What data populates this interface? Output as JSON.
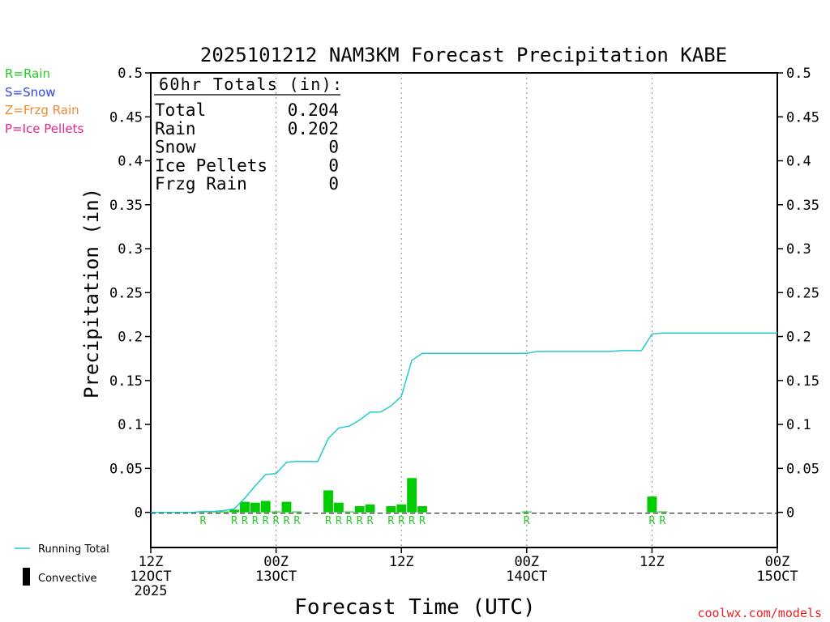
{
  "legend_types": [
    {
      "label": "R=Rain",
      "color": "#22cc22"
    },
    {
      "label": "S=Snow",
      "color": "#3344ee"
    },
    {
      "label": "Z=Frzg Rain",
      "color": "#ee8833"
    },
    {
      "label": "P=Ice Pellets",
      "color": "#ee2288"
    }
  ],
  "footer": {
    "running_total_label": "Running Total",
    "convective_label": "Convective",
    "credit": "coolwx.com/models"
  },
  "totals_box": {
    "heading": "60hr Totals (in):",
    "rows": [
      {
        "label": "Total",
        "value": "0.204"
      },
      {
        "label": "Rain",
        "value": "0.202"
      },
      {
        "label": "Snow",
        "value": "0"
      },
      {
        "label": "Ice Pellets",
        "value": "0"
      },
      {
        "label": "Frzg Rain",
        "value": "0"
      }
    ]
  },
  "colors": {
    "bar": "#00cc00",
    "running_total": "#22cccc",
    "rain_marker": "#22cc22",
    "grid": "#888888",
    "credit": "#ee2222"
  },
  "chart_data": {
    "type": "bar",
    "title": "2025101212 NAM3KM Forecast Precipitation KABE",
    "xlabel": "Forecast Time (UTC)",
    "ylabel": "Precipitation (in)",
    "xlim": [
      0,
      60
    ],
    "ylim": [
      -0.04,
      0.5
    ],
    "yticks": [
      0,
      0.05,
      0.1,
      0.15,
      0.2,
      0.25,
      0.3,
      0.35,
      0.4,
      0.45,
      0.5
    ],
    "ytick_labels": [
      "0",
      "0.05",
      "0.1",
      "0.15",
      "0.2",
      "0.25",
      "0.3",
      "0.35",
      "0.4",
      "0.45",
      "0.5"
    ],
    "xticks": [
      {
        "hour": 0,
        "lines": [
          "12Z",
          "12OCT",
          "2025"
        ]
      },
      {
        "hour": 12,
        "lines": [
          "00Z",
          "13OCT"
        ]
      },
      {
        "hour": 24,
        "lines": [
          "12Z"
        ]
      },
      {
        "hour": 36,
        "lines": [
          "00Z",
          "14OCT"
        ]
      },
      {
        "hour": 48,
        "lines": [
          "12Z"
        ]
      },
      {
        "hour": 60,
        "lines": [
          "00Z",
          "15OCT"
        ]
      }
    ],
    "grid_vertical": true,
    "hourly_precip": [
      {
        "hour": 5,
        "value": 0.001
      },
      {
        "hour": 6,
        "value": 0.001
      },
      {
        "hour": 7,
        "value": 0.001
      },
      {
        "hour": 8,
        "value": 0.003
      },
      {
        "hour": 9,
        "value": 0.012
      },
      {
        "hour": 10,
        "value": 0.011
      },
      {
        "hour": 11,
        "value": 0.013
      },
      {
        "hour": 12,
        "value": 0.001
      },
      {
        "hour": 13,
        "value": 0.012
      },
      {
        "hour": 14,
        "value": 0.001
      },
      {
        "hour": 15,
        "value": 0.0
      },
      {
        "hour": 16,
        "value": 0.0
      },
      {
        "hour": 17,
        "value": 0.025
      },
      {
        "hour": 18,
        "value": 0.011
      },
      {
        "hour": 19,
        "value": 0.001
      },
      {
        "hour": 20,
        "value": 0.007
      },
      {
        "hour": 21,
        "value": 0.009
      },
      {
        "hour": 22,
        "value": 0.0
      },
      {
        "hour": 23,
        "value": 0.007
      },
      {
        "hour": 24,
        "value": 0.009
      },
      {
        "hour": 25,
        "value": 0.039
      },
      {
        "hour": 26,
        "value": 0.007
      },
      {
        "hour": 36,
        "value": 0.001
      },
      {
        "hour": 48,
        "value": 0.018
      },
      {
        "hour": 49,
        "value": 0.001
      }
    ],
    "running_total": [
      {
        "hour": 0,
        "value": 0
      },
      {
        "hour": 1,
        "value": 0
      },
      {
        "hour": 2,
        "value": 0
      },
      {
        "hour": 3,
        "value": 0
      },
      {
        "hour": 4,
        "value": 0
      },
      {
        "hour": 5,
        "value": 0.001
      },
      {
        "hour": 6,
        "value": 0.001
      },
      {
        "hour": 7,
        "value": 0.002
      },
      {
        "hour": 8,
        "value": 0.004
      },
      {
        "hour": 9,
        "value": 0.016
      },
      {
        "hour": 10,
        "value": 0.03
      },
      {
        "hour": 11,
        "value": 0.043
      },
      {
        "hour": 12,
        "value": 0.044
      },
      {
        "hour": 13,
        "value": 0.057
      },
      {
        "hour": 14,
        "value": 0.058
      },
      {
        "hour": 15,
        "value": 0.058
      },
      {
        "hour": 16,
        "value": 0.058
      },
      {
        "hour": 17,
        "value": 0.084
      },
      {
        "hour": 18,
        "value": 0.096
      },
      {
        "hour": 19,
        "value": 0.098
      },
      {
        "hour": 20,
        "value": 0.105
      },
      {
        "hour": 21,
        "value": 0.114
      },
      {
        "hour": 22,
        "value": 0.114
      },
      {
        "hour": 23,
        "value": 0.121
      },
      {
        "hour": 24,
        "value": 0.132
      },
      {
        "hour": 25,
        "value": 0.173
      },
      {
        "hour": 26,
        "value": 0.181
      },
      {
        "hour": 36,
        "value": 0.181
      },
      {
        "hour": 37,
        "value": 0.183
      },
      {
        "hour": 44,
        "value": 0.183
      },
      {
        "hour": 45,
        "value": 0.184
      },
      {
        "hour": 47,
        "value": 0.184
      },
      {
        "hour": 48,
        "value": 0.203
      },
      {
        "hour": 49,
        "value": 0.204
      },
      {
        "hour": 60,
        "value": 0.204
      }
    ],
    "type_markers": [
      {
        "hour": 5,
        "label": "R"
      },
      {
        "hour": 8,
        "label": "R"
      },
      {
        "hour": 9,
        "label": "R"
      },
      {
        "hour": 10,
        "label": "R"
      },
      {
        "hour": 11,
        "label": "R"
      },
      {
        "hour": 12,
        "label": "R"
      },
      {
        "hour": 13,
        "label": "R"
      },
      {
        "hour": 14,
        "label": "R"
      },
      {
        "hour": 17,
        "label": "R"
      },
      {
        "hour": 18,
        "label": "R"
      },
      {
        "hour": 19,
        "label": "R"
      },
      {
        "hour": 20,
        "label": "R"
      },
      {
        "hour": 21,
        "label": "R"
      },
      {
        "hour": 23,
        "label": "R"
      },
      {
        "hour": 24,
        "label": "R"
      },
      {
        "hour": 25,
        "label": "R"
      },
      {
        "hour": 26,
        "label": "R"
      },
      {
        "hour": 36,
        "label": "R"
      },
      {
        "hour": 48,
        "label": "R"
      },
      {
        "hour": 49,
        "label": "R"
      }
    ]
  }
}
